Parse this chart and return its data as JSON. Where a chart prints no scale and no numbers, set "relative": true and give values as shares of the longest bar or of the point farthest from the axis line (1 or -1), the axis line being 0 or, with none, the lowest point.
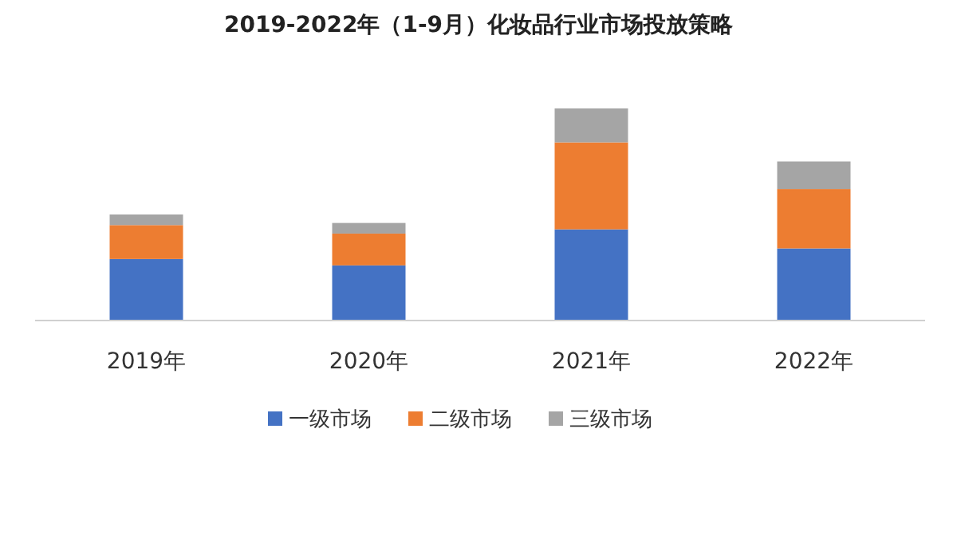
{
  "chart_data": {
    "type": "bar",
    "title": "2019-2022年（1-9月）化妆品行业市场投放策略",
    "stacked": true,
    "relative": true,
    "legend": "bottom",
    "categories": [
      "2019年",
      "2020年",
      "2021年",
      "2022年"
    ],
    "series": [
      {
        "name": "一级市场",
        "color": "#4472c4",
        "values": [
          0.29,
          0.26,
          0.43,
          0.34
        ]
      },
      {
        "name": "二级市场",
        "color": "#ed7d31",
        "values": [
          0.16,
          0.15,
          0.41,
          0.28
        ]
      },
      {
        "name": "三级市场",
        "color": "#a5a5a5",
        "values": [
          0.05,
          0.05,
          0.16,
          0.13
        ]
      }
    ]
  }
}
